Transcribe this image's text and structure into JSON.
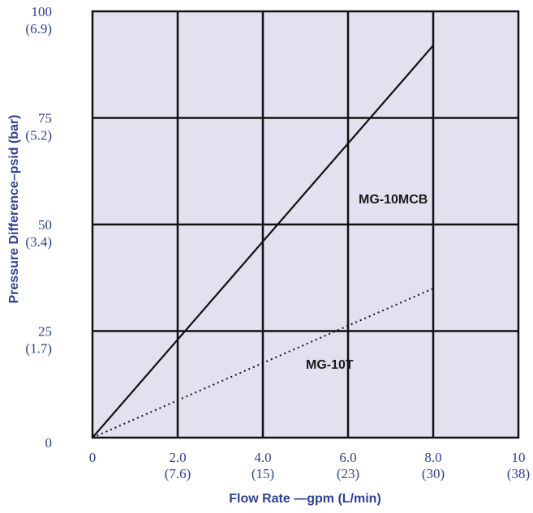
{
  "chart_data": {
    "type": "line",
    "xlabel": "Flow Rate —gpm (L/min)",
    "ylabel": "Pressure Difference–psid (bar)",
    "xlim": [
      0,
      10
    ],
    "ylim": [
      0,
      100
    ],
    "x_ticks": [
      {
        "value": 0,
        "label": "0",
        "sublabel": ""
      },
      {
        "value": 2,
        "label": "2.0",
        "sublabel": "(7.6)"
      },
      {
        "value": 4,
        "label": "4.0",
        "sublabel": "(15)"
      },
      {
        "value": 6,
        "label": "6.0",
        "sublabel": "(23)"
      },
      {
        "value": 8,
        "label": "8.0",
        "sublabel": "(30)"
      },
      {
        "value": 10,
        "label": "10",
        "sublabel": "(38)"
      }
    ],
    "y_ticks": [
      {
        "value": 0,
        "label": "0",
        "sublabel": ""
      },
      {
        "value": 25,
        "label": "25",
        "sublabel": "(1.7)"
      },
      {
        "value": 50,
        "label": "50",
        "sublabel": "(3.4)"
      },
      {
        "value": 75,
        "label": "75",
        "sublabel": "(5.2)"
      },
      {
        "value": 100,
        "label": "100",
        "sublabel": "(6.9)"
      }
    ],
    "grid": true,
    "series": [
      {
        "name": "MG-10MCB",
        "style": "solid",
        "x": [
          0,
          8
        ],
        "y": [
          0,
          92
        ]
      },
      {
        "name": "MG-10T",
        "style": "dotted",
        "x": [
          0,
          8
        ],
        "y": [
          0,
          35
        ]
      }
    ],
    "colors": {
      "plot_background": "#e1e1f0",
      "grid": "#111111",
      "tick_text": "#2e3f94",
      "axis_title": "#2e3f94",
      "line": "#111111"
    }
  }
}
